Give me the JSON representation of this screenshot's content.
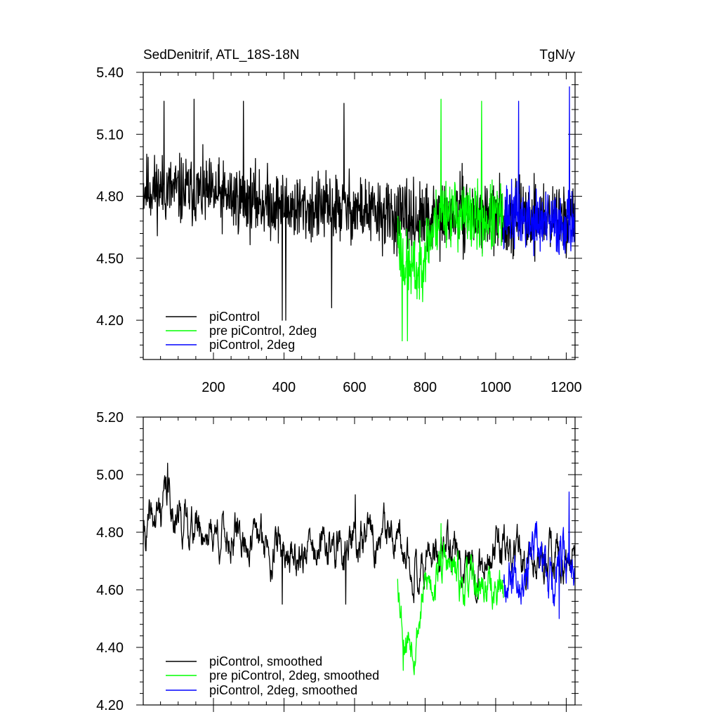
{
  "chart_data": [
    {
      "type": "line",
      "title_left": "SedDenitrif, ATL_18S-18N",
      "title_right": "TgN/y",
      "xlim": [
        1,
        1225
      ],
      "ylim": [
        4.01,
        5.4
      ],
      "x_ticks": [
        200,
        400,
        600,
        800,
        1000,
        1200
      ],
      "x_tick_labels": [
        "200",
        "400",
        "600",
        "800",
        "1000",
        "1200"
      ],
      "y_ticks": [
        4.2,
        4.5,
        4.8,
        5.1,
        5.4
      ],
      "y_tick_labels": [
        "4.20",
        "4.50",
        "4.80",
        "5.10",
        "5.40"
      ],
      "legend_position": "bottom-left",
      "series": [
        {
          "name": "piControl",
          "color": "#000000",
          "x_start": 1,
          "x_end": 1225,
          "means": [
            [
              1,
              4.84
            ],
            [
              150,
              4.82
            ],
            [
              300,
              4.78
            ],
            [
              450,
              4.74
            ],
            [
              600,
              4.74
            ],
            [
              700,
              4.7
            ],
            [
              800,
              4.68
            ],
            [
              900,
              4.72
            ],
            [
              1000,
              4.7
            ],
            [
              1100,
              4.7
            ],
            [
              1225,
              4.7
            ]
          ],
          "amplitude": 0.15,
          "seed": 11,
          "spikes": [
            [
              60,
              5.26
            ],
            [
              145,
              5.27
            ],
            [
              285,
              5.26
            ],
            [
              395,
              4.2
            ],
            [
              405,
              4.2
            ],
            [
              535,
              4.26
            ],
            [
              570,
              5.25
            ]
          ]
        },
        {
          "name": "pre piControl, 2deg",
          "color": "#00ff00",
          "x_start": 722,
          "x_end": 1022,
          "means": [
            [
              722,
              4.62
            ],
            [
              740,
              4.48
            ],
            [
              780,
              4.42
            ],
            [
              800,
              4.55
            ],
            [
              850,
              4.74
            ],
            [
              950,
              4.68
            ],
            [
              1022,
              4.7
            ]
          ],
          "amplitude": 0.15,
          "seed": 23,
          "spikes": [
            [
              735,
              4.1
            ],
            [
              750,
              4.1
            ],
            [
              845,
              5.27
            ],
            [
              960,
              5.26
            ]
          ]
        },
        {
          "name": "piControl, 2deg",
          "color": "#0000ff",
          "x_start": 1022,
          "x_end": 1225,
          "means": [
            [
              1022,
              4.72
            ],
            [
              1100,
              4.68
            ],
            [
              1160,
              4.66
            ],
            [
              1225,
              4.68
            ]
          ],
          "amplitude": 0.14,
          "seed": 37,
          "spikes": [
            [
              1065,
              5.26
            ],
            [
              1209,
              5.33
            ]
          ]
        }
      ]
    },
    {
      "type": "line",
      "xlim": [
        1,
        1225
      ],
      "ylim": [
        4.2,
        5.2
      ],
      "x_ticks": [
        200,
        400,
        600,
        800,
        1000,
        1200
      ],
      "y_ticks": [
        4.2,
        4.4,
        4.6,
        4.8,
        5.0,
        5.2
      ],
      "y_tick_labels": [
        "4.20",
        "4.40",
        "4.60",
        "4.80",
        "5.00",
        "5.20"
      ],
      "legend_position": "bottom-left",
      "series": [
        {
          "name": "piControl, smoothed",
          "color": "#000000",
          "x_start": 1,
          "x_end": 1225,
          "means": [
            [
              1,
              4.78
            ],
            [
              40,
              4.85
            ],
            [
              70,
              4.93
            ],
            [
              100,
              4.85
            ],
            [
              200,
              4.8
            ],
            [
              350,
              4.76
            ],
            [
              450,
              4.72
            ],
            [
              600,
              4.76
            ],
            [
              700,
              4.78
            ],
            [
              750,
              4.68
            ],
            [
              850,
              4.72
            ],
            [
              950,
              4.7
            ],
            [
              1000,
              4.74
            ],
            [
              1100,
              4.68
            ],
            [
              1225,
              4.72
            ]
          ],
          "amplitude": 0.05,
          "seed": 41,
          "spikes": [
            [
              70,
              5.04
            ],
            [
              395,
              4.55
            ],
            [
              575,
              4.55
            ],
            [
              602,
              4.93
            ]
          ]
        },
        {
          "name": "pre piControl, 2deg, smoothed",
          "color": "#00ff00",
          "x_start": 722,
          "x_end": 1022,
          "means": [
            [
              722,
              4.66
            ],
            [
              740,
              4.46
            ],
            [
              770,
              4.44
            ],
            [
              800,
              4.6
            ],
            [
              850,
              4.7
            ],
            [
              900,
              4.62
            ],
            [
              1022,
              4.6
            ]
          ],
          "amplitude": 0.05,
          "seed": 53,
          "spikes": [
            [
              738,
              4.32
            ],
            [
              845,
              4.83
            ]
          ]
        },
        {
          "name": "piControl, 2deg, smoothed",
          "color": "#0000ff",
          "x_start": 1022,
          "x_end": 1225,
          "means": [
            [
              1022,
              4.66
            ],
            [
              1100,
              4.72
            ],
            [
              1160,
              4.64
            ],
            [
              1225,
              4.72
            ]
          ],
          "amplitude": 0.06,
          "seed": 67,
          "spikes": [
            [
              1180,
              4.5
            ],
            [
              1208,
              4.94
            ]
          ]
        }
      ]
    }
  ]
}
